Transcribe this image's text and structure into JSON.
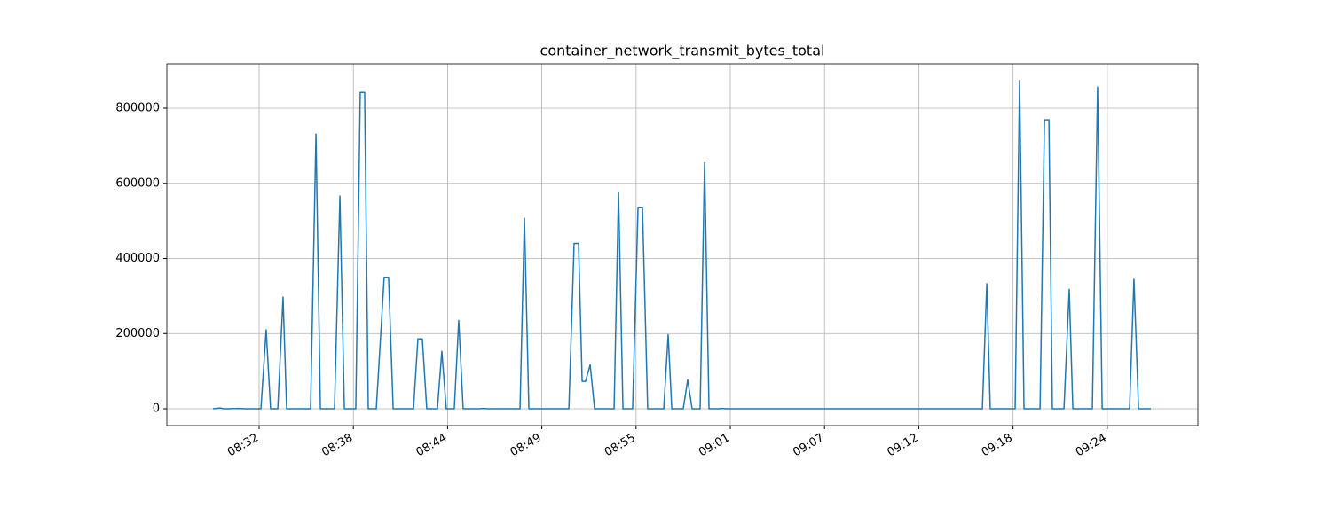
{
  "chart_data": {
    "type": "line",
    "title": "container_network_transmit_bytes_total",
    "x": [
      509.79,
      510.22,
      510.43,
      511.41,
      511.68,
      512.71,
      513.03,
      513.3,
      513.74,
      514.06,
      514.28,
      514.98,
      515.74,
      516.07,
      516.34,
      517.2,
      517.53,
      517.8,
      518.5,
      518.77,
      519.04,
      519.26,
      519.75,
      520.23,
      520.5,
      520.78,
      522.02,
      522.29,
      522.56,
      522.83,
      523.48,
      523.75,
      524.02,
      524.51,
      524.78,
      525.05,
      526.03,
      526.3,
      526.57,
      528.52,
      528.79,
      529.06,
      531.5,
      531.82,
      532.09,
      532.31,
      532.52,
      532.8,
      533.07,
      534.26,
      534.53,
      534.8,
      535.39,
      535.72,
      535.99,
      536.31,
      537.29,
      537.56,
      537.78,
      538.48,
      538.75,
      539.02,
      539.51,
      539.78,
      540.05,
      540.65,
      540.81,
      541.08,
      556.73,
      557.0,
      557.21,
      558.73,
      559.0,
      559.27,
      560.25,
      560.52,
      560.79,
      561.0,
      561.71,
      562.03,
      562.25,
      563.44,
      563.76,
      564.04,
      565.71,
      565.98,
      566.26,
      567.01
    ],
    "series": [
      {
        "name": "container_network_transmit_bytes_total",
        "color": "#1f77b4",
        "values": [
          0,
          2000,
          0,
          1000,
          0,
          0,
          210000,
          0,
          0,
          297000,
          0,
          0,
          0,
          731000,
          0,
          0,
          566000,
          0,
          0,
          842000,
          842000,
          0,
          0,
          350000,
          350000,
          0,
          0,
          186000,
          186000,
          0,
          0,
          153000,
          0,
          0,
          235000,
          0,
          0,
          1000,
          0,
          0,
          507000,
          0,
          0,
          440000,
          440000,
          73000,
          73000,
          117000,
          0,
          0,
          577000,
          0,
          0,
          535000,
          535000,
          0,
          0,
          197000,
          0,
          0,
          77000,
          0,
          0,
          655000,
          0,
          0,
          1000,
          0,
          0,
          333000,
          0,
          0,
          874000,
          0,
          0,
          769000,
          769000,
          0,
          0,
          318000,
          0,
          0,
          856000,
          0,
          0,
          345000,
          0,
          0
        ]
      }
    ],
    "xlim": [
      506.97,
      569.88
    ],
    "xticks": [
      {
        "value": 512.6,
        "label": "08:32"
      },
      {
        "value": 518.35,
        "label": "08:38"
      },
      {
        "value": 524.1,
        "label": "08:44"
      },
      {
        "value": 529.85,
        "label": "08:49"
      },
      {
        "value": 535.6,
        "label": "08:55"
      },
      {
        "value": 541.35,
        "label": "09:01"
      },
      {
        "value": 547.1,
        "label": "09:07"
      },
      {
        "value": 552.85,
        "label": "09:12"
      },
      {
        "value": 558.6,
        "label": "09:18"
      },
      {
        "value": 564.35,
        "label": "09:24"
      }
    ],
    "ylim": [
      -44800,
      918000
    ],
    "yticks": [
      0,
      200000,
      400000,
      600000,
      800000
    ],
    "grid": true
  }
}
